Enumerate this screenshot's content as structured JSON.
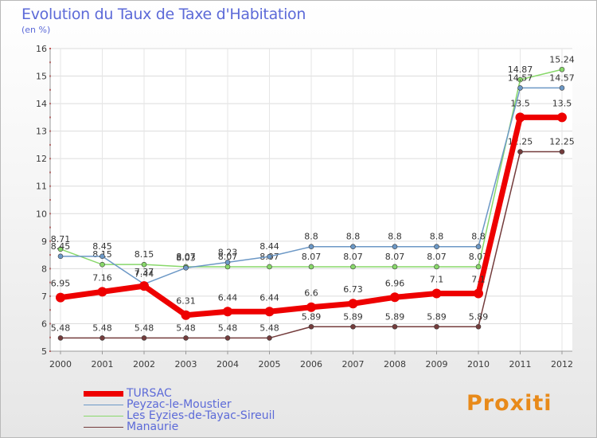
{
  "colors": {
    "TURSAC": "#ee0000",
    "Peyzac": "#6c98c6",
    "Eyzies": "#88d86a",
    "Manaurie": "#743c3c",
    "title": "#5c6ad8"
  },
  "brand": "Proxiti",
  "chart_data": {
    "type": "line",
    "title": "Evolution du Taux de Taxe d'Habitation",
    "ylabel": "(en %)",
    "xlabel": "",
    "ylim": [
      5,
      16
    ],
    "yticks": [
      "5",
      "6",
      "7",
      "8",
      "9",
      "10",
      "11",
      "12",
      "13",
      "14",
      "15",
      "16"
    ],
    "categories": [
      "2000",
      "2001",
      "2002",
      "2003",
      "2004",
      "2005",
      "2006",
      "2007",
      "2008",
      "2009",
      "2010",
      "2011",
      "2012"
    ],
    "legend_position": "bottom-left",
    "series": [
      {
        "name": "Manaurie",
        "values": [
          5.48,
          5.48,
          5.48,
          5.48,
          5.48,
          5.48,
          5.89,
          5.89,
          5.89,
          5.89,
          5.89,
          12.25,
          12.25
        ],
        "labels": [
          "5.48",
          "5.48",
          "5.48",
          "5.48",
          "5.48",
          "5.48",
          "5.89",
          "5.89",
          "5.89",
          "5.89",
          "5.89",
          "12.25",
          "12.25"
        ]
      },
      {
        "name": "Les Eyzies-de-Tayac-Sireuil",
        "values": [
          8.71,
          8.15,
          8.15,
          8.07,
          8.07,
          8.07,
          8.07,
          8.07,
          8.07,
          8.07,
          8.07,
          14.87,
          15.24
        ],
        "labels": [
          "8.71",
          "8.15",
          "8.15",
          "8.07",
          "8.07",
          "8.07",
          "8.07",
          "8.07",
          "8.07",
          "8.07",
          "8.07",
          "14.87",
          "15.24"
        ]
      },
      {
        "name": "Peyzac-le-Moustier",
        "values": [
          8.45,
          8.45,
          7.44,
          8.03,
          8.23,
          8.44,
          8.8,
          8.8,
          8.8,
          8.8,
          8.8,
          14.57,
          14.57
        ],
        "labels": [
          "8.45",
          "8.45",
          "7.44",
          "8.03",
          "8.23",
          "8.44",
          "8.8",
          "8.8",
          "8.8",
          "8.8",
          "8.8",
          "14.57",
          "14.57"
        ]
      },
      {
        "name": "TURSAC",
        "values": [
          6.95,
          7.16,
          7.37,
          6.31,
          6.44,
          6.44,
          6.6,
          6.73,
          6.96,
          7.1,
          7.1,
          13.5,
          13.5
        ],
        "labels": [
          "6.95",
          "7.16",
          "7.37",
          "6.31",
          "6.44",
          "6.44",
          "6.6",
          "6.73",
          "6.96",
          "7.1",
          "7.1",
          "13.5",
          "13.5"
        ]
      }
    ],
    "legend": [
      "TURSAC",
      "Peyzac-le-Moustier",
      "Les Eyzies-de-Tayac-Sireuil",
      "Manaurie"
    ]
  }
}
